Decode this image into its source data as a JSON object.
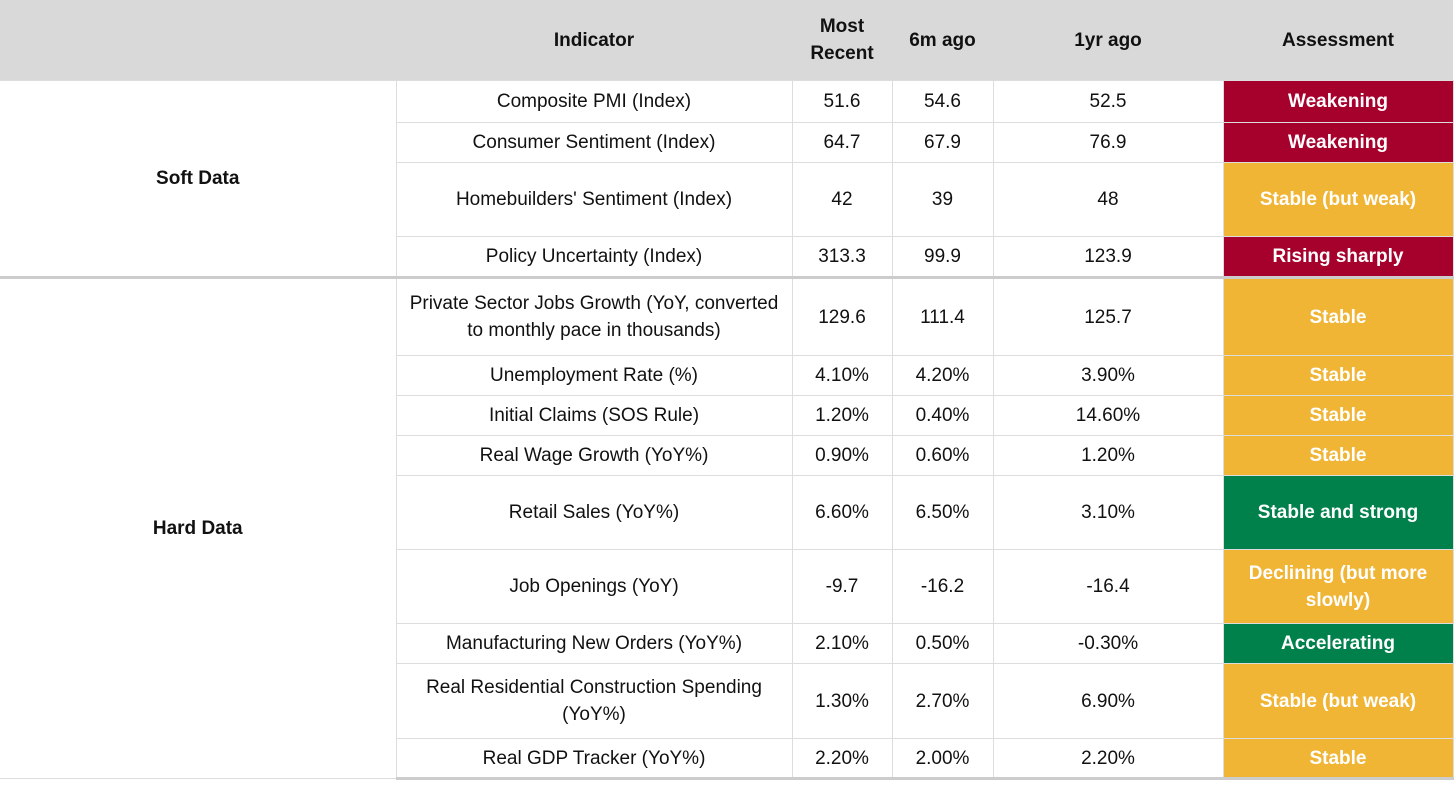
{
  "header": {
    "indicator": "Indicator",
    "most_recent": "Most Recent",
    "six_months_ago": "6m ago",
    "one_year_ago": "1yr ago",
    "assessment": "Assessment"
  },
  "groups": [
    {
      "label": "Soft Data",
      "rows": [
        {
          "indicator": "Composite PMI (Index)",
          "most_recent": "51.6",
          "six_months_ago": "54.6",
          "one_year_ago": "52.5",
          "assessment": "Weakening",
          "assessment_color": "#a6002c"
        },
        {
          "indicator": "Consumer Sentiment (Index)",
          "most_recent": "64.7",
          "six_months_ago": "67.9",
          "one_year_ago": "76.9",
          "assessment": "Weakening",
          "assessment_color": "#a6002c"
        },
        {
          "indicator": "Homebuilders' Sentiment (Index)",
          "most_recent": "42",
          "six_months_ago": "39",
          "one_year_ago": "48",
          "assessment": "Stable (but weak)",
          "assessment_color": "#f0b535"
        },
        {
          "indicator": "Policy Uncertainty (Index)",
          "most_recent": "313.3",
          "six_months_ago": "99.9",
          "one_year_ago": "123.9",
          "assessment": "Rising sharply",
          "assessment_color": "#a6002c"
        }
      ]
    },
    {
      "label": "Hard Data",
      "rows": [
        {
          "indicator": "Private Sector Jobs Growth (YoY, converted to monthly pace in thousands)",
          "most_recent": "129.6",
          "six_months_ago": "111.4",
          "one_year_ago": "125.7",
          "assessment": "Stable",
          "assessment_color": "#f0b535"
        },
        {
          "indicator": "Unemployment Rate (%)",
          "most_recent": "4.10%",
          "six_months_ago": "4.20%",
          "one_year_ago": "3.90%",
          "assessment": "Stable",
          "assessment_color": "#f0b535"
        },
        {
          "indicator": "Initial Claims (SOS Rule)",
          "most_recent": "1.20%",
          "six_months_ago": "0.40%",
          "one_year_ago": "14.60%",
          "assessment": "Stable",
          "assessment_color": "#f0b535"
        },
        {
          "indicator": "Real Wage Growth (YoY%)",
          "most_recent": "0.90%",
          "six_months_ago": "0.60%",
          "one_year_ago": "1.20%",
          "assessment": "Stable",
          "assessment_color": "#f0b535"
        },
        {
          "indicator": "Retail Sales (YoY%)",
          "most_recent": "6.60%",
          "six_months_ago": "6.50%",
          "one_year_ago": "3.10%",
          "assessment": "Stable and strong",
          "assessment_color": "#00804a"
        },
        {
          "indicator": "Job Openings (YoY)",
          "most_recent": "-9.7",
          "six_months_ago": "-16.2",
          "one_year_ago": "-16.4",
          "assessment": "Declining (but more slowly)",
          "assessment_color": "#f0b535"
        },
        {
          "indicator": "Manufacturing New Orders (YoY%)",
          "most_recent": "2.10%",
          "six_months_ago": "0.50%",
          "one_year_ago": "-0.30%",
          "assessment": "Accelerating",
          "assessment_color": "#00804a"
        },
        {
          "indicator": "Real Residential Construction Spending (YoY%)",
          "most_recent": "1.30%",
          "six_months_ago": "2.70%",
          "one_year_ago": "6.90%",
          "assessment": "Stable (but weak)",
          "assessment_color": "#f0b535"
        },
        {
          "indicator": "Real GDP Tracker (YoY%)",
          "most_recent": "2.20%",
          "six_months_ago": "2.00%",
          "one_year_ago": "2.20%",
          "assessment": "Stable",
          "assessment_color": "#f0b535"
        }
      ]
    }
  ]
}
